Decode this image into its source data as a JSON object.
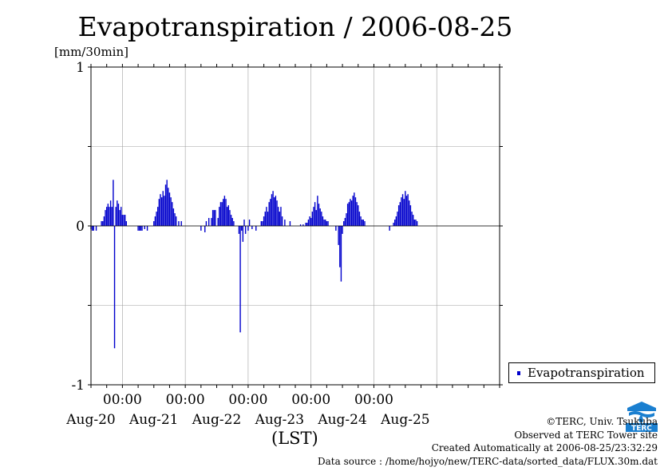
{
  "header": {
    "title": "Evapotranspiration / 2006-08-25",
    "unit": "[mm/30min]"
  },
  "axes": {
    "xlabel": "(LST)"
  },
  "legend": {
    "label": "Evapotranspiration"
  },
  "footer": {
    "copyright": "©TERC, Univ. Tsukuba",
    "observed": "Observed at TERC Tower site",
    "created": "Created Automatically at 2006-08-25/23:32:29",
    "source": "Data source : /home/hojyo/new/TERC-data/sorted_data/FLUX.30m.dat"
  },
  "logo": {
    "icon": "terc-logo-icon",
    "text": "TERC",
    "color": "#1a7fd0"
  },
  "chart_data": {
    "type": "bar",
    "series_color": "#0000cc",
    "ylim": [
      -1,
      1
    ],
    "yticks": [
      -1,
      0,
      1
    ],
    "grid": true,
    "legend_position": "bottom-right",
    "x_start": "2006-08-19 12:00",
    "x_end": "2006-08-25 24:00",
    "major_ticks": [
      "00:00",
      "00:00",
      "00:00",
      "00:00",
      "00:00"
    ],
    "day_labels": [
      "Aug-20",
      "Aug-21",
      "Aug-22",
      "Aug-23",
      "Aug-24",
      "Aug-25"
    ],
    "series": [
      {
        "name": "Evapotranspiration",
        "points": [
          {
            "t": "2006-08-19 12:00",
            "v": -0.02
          },
          {
            "t": "2006-08-19 12:30",
            "v": -0.03
          },
          {
            "t": "2006-08-19 13:00",
            "v": -0.03
          },
          {
            "t": "2006-08-19 14:00",
            "v": -0.03
          },
          {
            "t": "2006-08-19 16:00",
            "v": 0.03
          },
          {
            "t": "2006-08-19 16:30",
            "v": 0.03
          },
          {
            "t": "2006-08-19 17:00",
            "v": 0.06
          },
          {
            "t": "2006-08-19 17:30",
            "v": 0.1
          },
          {
            "t": "2006-08-19 18:00",
            "v": 0.12
          },
          {
            "t": "2006-08-19 18:30",
            "v": 0.14
          },
          {
            "t": "2006-08-19 19:00",
            "v": 0.12
          },
          {
            "t": "2006-08-19 19:30",
            "v": 0.16
          },
          {
            "t": "2006-08-19 20:00",
            "v": 0.12
          },
          {
            "t": "2006-08-19 20:30",
            "v": 0.29
          },
          {
            "t": "2006-08-19 21:00",
            "v": -0.77
          },
          {
            "t": "2006-08-19 21:30",
            "v": 0.12
          },
          {
            "t": "2006-08-19 22:00",
            "v": 0.16
          },
          {
            "t": "2006-08-19 22:30",
            "v": 0.14
          },
          {
            "t": "2006-08-19 23:00",
            "v": 0.1
          },
          {
            "t": "2006-08-19 23:30",
            "v": 0.12
          },
          {
            "t": "2006-08-20 00:00",
            "v": 0.07
          },
          {
            "t": "2006-08-20 00:30",
            "v": 0.07
          },
          {
            "t": "2006-08-20 01:00",
            "v": 0.07
          },
          {
            "t": "2006-08-20 01:30",
            "v": 0.03
          },
          {
            "t": "2006-08-20 06:00",
            "v": -0.03
          },
          {
            "t": "2006-08-20 06:30",
            "v": -0.03
          },
          {
            "t": "2006-08-20 07:00",
            "v": -0.03
          },
          {
            "t": "2006-08-20 07:30",
            "v": -0.03
          },
          {
            "t": "2006-08-20 08:30",
            "v": -0.02
          },
          {
            "t": "2006-08-20 09:30",
            "v": -0.03
          },
          {
            "t": "2006-08-20 12:00",
            "v": 0.03
          },
          {
            "t": "2006-08-20 12:30",
            "v": 0.06
          },
          {
            "t": "2006-08-20 13:00",
            "v": 0.09
          },
          {
            "t": "2006-08-20 13:30",
            "v": 0.12
          },
          {
            "t": "2006-08-20 14:00",
            "v": 0.17
          },
          {
            "t": "2006-08-20 14:30",
            "v": 0.2
          },
          {
            "t": "2006-08-20 15:00",
            "v": 0.18
          },
          {
            "t": "2006-08-20 15:30",
            "v": 0.22
          },
          {
            "t": "2006-08-20 16:00",
            "v": 0.19
          },
          {
            "t": "2006-08-20 16:30",
            "v": 0.26
          },
          {
            "t": "2006-08-20 17:00",
            "v": 0.29
          },
          {
            "t": "2006-08-20 17:30",
            "v": 0.24
          },
          {
            "t": "2006-08-20 18:00",
            "v": 0.21
          },
          {
            "t": "2006-08-20 18:30",
            "v": 0.18
          },
          {
            "t": "2006-08-20 19:00",
            "v": 0.15
          },
          {
            "t": "2006-08-20 19:30",
            "v": 0.11
          },
          {
            "t": "2006-08-20 20:00",
            "v": 0.08
          },
          {
            "t": "2006-08-20 20:30",
            "v": 0.06
          },
          {
            "t": "2006-08-20 21:30",
            "v": 0.03
          },
          {
            "t": "2006-08-20 22:30",
            "v": 0.03
          },
          {
            "t": "2006-08-21 06:00",
            "v": -0.03
          },
          {
            "t": "2006-08-21 07:30",
            "v": -0.04
          },
          {
            "t": "2006-08-21 08:00",
            "v": 0.03
          },
          {
            "t": "2006-08-21 09:00",
            "v": 0.05
          },
          {
            "t": "2006-08-21 10:00",
            "v": 0.05
          },
          {
            "t": "2006-08-21 10:30",
            "v": 0.1
          },
          {
            "t": "2006-08-21 11:00",
            "v": 0.1
          },
          {
            "t": "2006-08-21 11:30",
            "v": 0.1
          },
          {
            "t": "2006-08-21 12:30",
            "v": 0.05
          },
          {
            "t": "2006-08-21 13:00",
            "v": 0.12
          },
          {
            "t": "2006-08-21 13:30",
            "v": 0.15
          },
          {
            "t": "2006-08-21 14:00",
            "v": 0.15
          },
          {
            "t": "2006-08-21 14:30",
            "v": 0.17
          },
          {
            "t": "2006-08-21 15:00",
            "v": 0.19
          },
          {
            "t": "2006-08-21 15:30",
            "v": 0.17
          },
          {
            "t": "2006-08-21 16:00",
            "v": 0.12
          },
          {
            "t": "2006-08-21 16:30",
            "v": 0.13
          },
          {
            "t": "2006-08-21 17:00",
            "v": 0.1
          },
          {
            "t": "2006-08-21 17:30",
            "v": 0.07
          },
          {
            "t": "2006-08-21 18:00",
            "v": 0.05
          },
          {
            "t": "2006-08-21 18:30",
            "v": 0.03
          },
          {
            "t": "2006-08-21 20:30",
            "v": -0.05
          },
          {
            "t": "2006-08-21 21:00",
            "v": -0.67
          },
          {
            "t": "2006-08-21 21:30",
            "v": -0.03
          },
          {
            "t": "2006-08-21 22:00",
            "v": -0.1
          },
          {
            "t": "2006-08-21 22:30",
            "v": 0.04
          },
          {
            "t": "2006-08-21 23:00",
            "v": -0.05
          },
          {
            "t": "2006-08-22 00:00",
            "v": -0.03
          },
          {
            "t": "2006-08-22 00:30",
            "v": 0.04
          },
          {
            "t": "2006-08-22 01:30",
            "v": -0.02
          },
          {
            "t": "2006-08-22 03:00",
            "v": -0.03
          },
          {
            "t": "2006-08-22 05:00",
            "v": 0.03
          },
          {
            "t": "2006-08-22 05:30",
            "v": 0.03
          },
          {
            "t": "2006-08-22 06:00",
            "v": 0.06
          },
          {
            "t": "2006-08-22 06:30",
            "v": 0.09
          },
          {
            "t": "2006-08-22 07:00",
            "v": 0.12
          },
          {
            "t": "2006-08-22 07:30",
            "v": 0.09
          },
          {
            "t": "2006-08-22 08:00",
            "v": 0.15
          },
          {
            "t": "2006-08-22 08:30",
            "v": 0.17
          },
          {
            "t": "2006-08-22 09:00",
            "v": 0.2
          },
          {
            "t": "2006-08-22 09:30",
            "v": 0.22
          },
          {
            "t": "2006-08-22 10:00",
            "v": 0.18
          },
          {
            "t": "2006-08-22 10:30",
            "v": 0.19
          },
          {
            "t": "2006-08-22 11:00",
            "v": 0.16
          },
          {
            "t": "2006-08-22 11:30",
            "v": 0.12
          },
          {
            "t": "2006-08-22 12:00",
            "v": 0.09
          },
          {
            "t": "2006-08-22 12:30",
            "v": 0.12
          },
          {
            "t": "2006-08-22 13:00",
            "v": 0.06
          },
          {
            "t": "2006-08-22 14:00",
            "v": 0.04
          },
          {
            "t": "2006-08-22 16:00",
            "v": 0.03
          },
          {
            "t": "2006-08-22 20:00",
            "v": 0.01
          },
          {
            "t": "2006-08-22 21:00",
            "v": 0.01
          },
          {
            "t": "2006-08-22 22:00",
            "v": 0.02
          },
          {
            "t": "2006-08-22 22:30",
            "v": 0.02
          },
          {
            "t": "2006-08-22 23:00",
            "v": 0.04
          },
          {
            "t": "2006-08-22 23:30",
            "v": 0.06
          },
          {
            "t": "2006-08-23 00:00",
            "v": 0.05
          },
          {
            "t": "2006-08-23 00:30",
            "v": 0.09
          },
          {
            "t": "2006-08-23 01:00",
            "v": 0.12
          },
          {
            "t": "2006-08-23 01:30",
            "v": 0.15
          },
          {
            "t": "2006-08-23 02:00",
            "v": 0.1
          },
          {
            "t": "2006-08-23 02:30",
            "v": 0.19
          },
          {
            "t": "2006-08-23 03:00",
            "v": 0.14
          },
          {
            "t": "2006-08-23 03:30",
            "v": 0.11
          },
          {
            "t": "2006-08-23 04:00",
            "v": 0.09
          },
          {
            "t": "2006-08-23 04:30",
            "v": 0.06
          },
          {
            "t": "2006-08-23 05:00",
            "v": 0.04
          },
          {
            "t": "2006-08-23 05:30",
            "v": 0.04
          },
          {
            "t": "2006-08-23 06:00",
            "v": 0.03
          },
          {
            "t": "2006-08-23 06:30",
            "v": 0.03
          },
          {
            "t": "2006-08-23 09:30",
            "v": -0.03
          },
          {
            "t": "2006-08-23 10:30",
            "v": -0.12
          },
          {
            "t": "2006-08-23 11:00",
            "v": -0.26
          },
          {
            "t": "2006-08-23 11:30",
            "v": -0.35
          },
          {
            "t": "2006-08-23 12:00",
            "v": -0.05
          },
          {
            "t": "2006-08-23 12:30",
            "v": 0.03
          },
          {
            "t": "2006-08-23 13:00",
            "v": 0.05
          },
          {
            "t": "2006-08-23 13:30",
            "v": 0.08
          },
          {
            "t": "2006-08-23 14:00",
            "v": 0.14
          },
          {
            "t": "2006-08-23 14:30",
            "v": 0.15
          },
          {
            "t": "2006-08-23 15:00",
            "v": 0.17
          },
          {
            "t": "2006-08-23 15:30",
            "v": 0.16
          },
          {
            "t": "2006-08-23 16:00",
            "v": 0.19
          },
          {
            "t": "2006-08-23 16:30",
            "v": 0.21
          },
          {
            "t": "2006-08-23 17:00",
            "v": 0.18
          },
          {
            "t": "2006-08-23 17:30",
            "v": 0.15
          },
          {
            "t": "2006-08-23 18:00",
            "v": 0.13
          },
          {
            "t": "2006-08-23 18:30",
            "v": 0.09
          },
          {
            "t": "2006-08-23 19:00",
            "v": 0.06
          },
          {
            "t": "2006-08-23 19:30",
            "v": 0.04
          },
          {
            "t": "2006-08-23 20:00",
            "v": 0.04
          },
          {
            "t": "2006-08-23 20:30",
            "v": 0.03
          },
          {
            "t": "2006-08-24 06:00",
            "v": -0.03
          },
          {
            "t": "2006-08-24 07:30",
            "v": 0.02
          },
          {
            "t": "2006-08-24 08:00",
            "v": 0.04
          },
          {
            "t": "2006-08-24 08:30",
            "v": 0.06
          },
          {
            "t": "2006-08-24 09:00",
            "v": 0.09
          },
          {
            "t": "2006-08-24 09:30",
            "v": 0.13
          },
          {
            "t": "2006-08-24 10:00",
            "v": 0.15
          },
          {
            "t": "2006-08-24 10:30",
            "v": 0.18
          },
          {
            "t": "2006-08-24 11:00",
            "v": 0.2
          },
          {
            "t": "2006-08-24 11:30",
            "v": 0.17
          },
          {
            "t": "2006-08-24 12:00",
            "v": 0.22
          },
          {
            "t": "2006-08-24 12:30",
            "v": 0.19
          },
          {
            "t": "2006-08-24 13:00",
            "v": 0.2
          },
          {
            "t": "2006-08-24 13:30",
            "v": 0.16
          },
          {
            "t": "2006-08-24 14:00",
            "v": 0.13
          },
          {
            "t": "2006-08-24 14:30",
            "v": 0.09
          },
          {
            "t": "2006-08-24 15:00",
            "v": 0.07
          },
          {
            "t": "2006-08-24 15:30",
            "v": 0.04
          },
          {
            "t": "2006-08-24 16:00",
            "v": 0.04
          },
          {
            "t": "2006-08-24 16:30",
            "v": 0.03
          }
        ]
      }
    ]
  }
}
